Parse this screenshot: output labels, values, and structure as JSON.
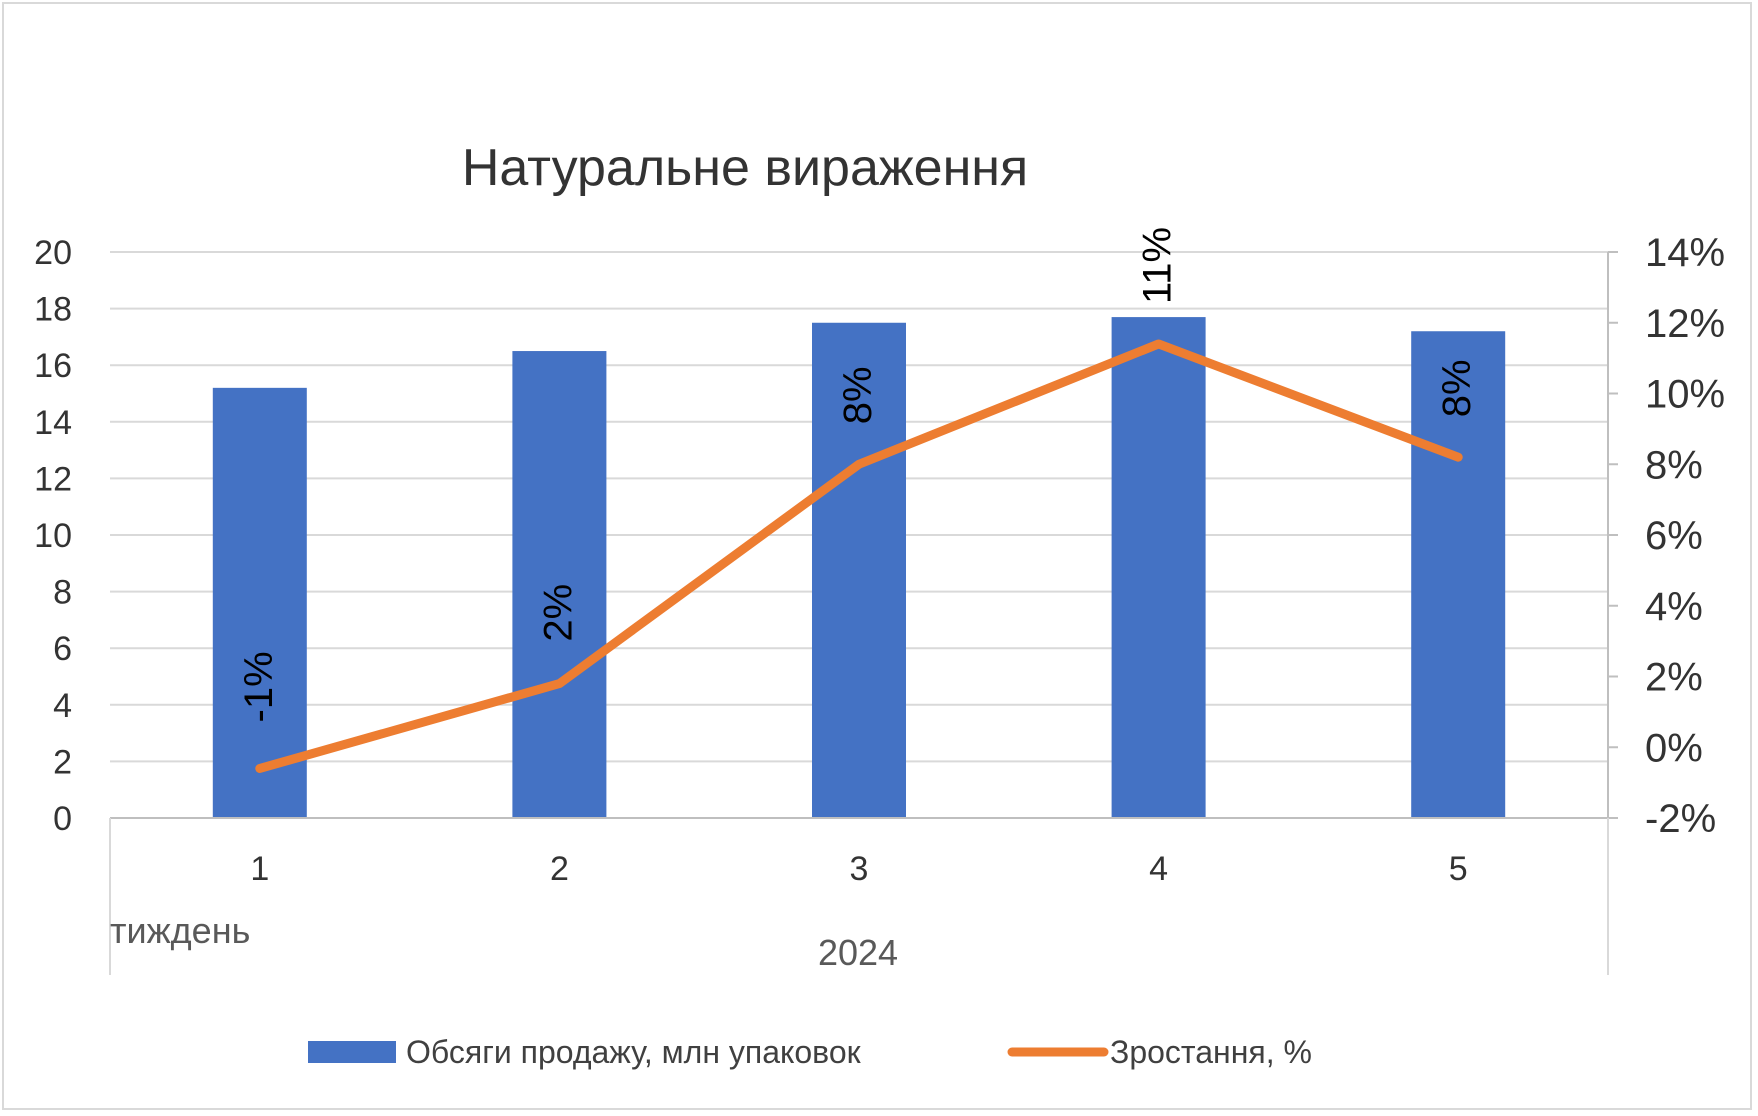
{
  "chart_data": {
    "type": "bar",
    "title": "Натуральне вираження",
    "categories": [
      "1",
      "2",
      "3",
      "4",
      "5"
    ],
    "category_axis_label": "тиждень",
    "category_group_label": "2024",
    "series": [
      {
        "name": "Обсяги продажу, млн упаковок",
        "type": "bar",
        "axis": "left",
        "color": "#4472C4",
        "values": [
          15.2,
          16.5,
          17.5,
          17.7,
          17.2
        ]
      },
      {
        "name": "Зростання, %",
        "type": "line",
        "axis": "right",
        "color": "#ED7D31",
        "values": [
          -0.6,
          1.8,
          8.0,
          11.4,
          8.2
        ],
        "data_labels": [
          "-1%",
          "2%",
          "8%",
          "11%",
          "8%"
        ]
      }
    ],
    "y_left": {
      "min": 0,
      "max": 20,
      "step": 2,
      "ticks": [
        "0",
        "2",
        "4",
        "6",
        "8",
        "10",
        "12",
        "14",
        "16",
        "18",
        "20"
      ]
    },
    "y_right": {
      "min": -2,
      "max": 14,
      "step": 2,
      "ticks": [
        "-2%",
        "0%",
        "2%",
        "4%",
        "6%",
        "8%",
        "10%",
        "12%",
        "14%"
      ]
    },
    "grid": true,
    "legend_position": "bottom"
  }
}
